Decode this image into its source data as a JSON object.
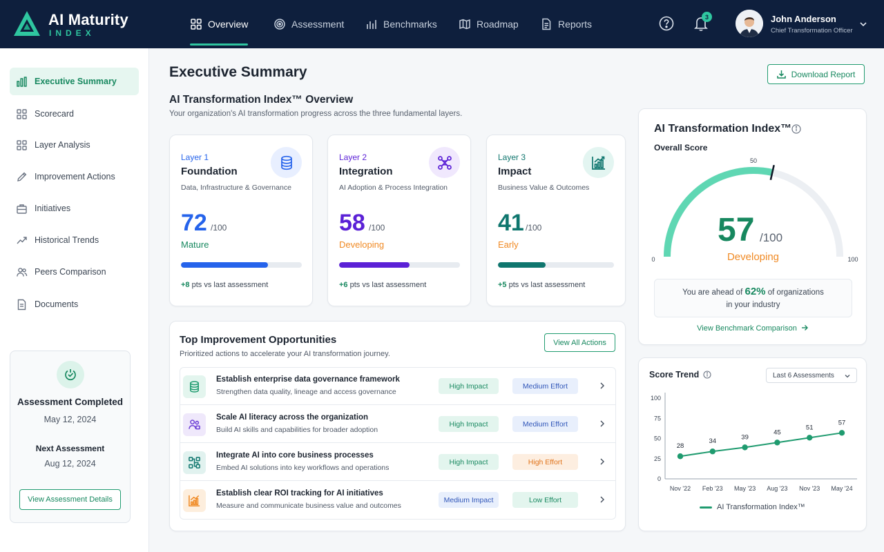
{
  "brand": {
    "title": "AI Maturity",
    "subtitle": "INDEX"
  },
  "nav": [
    {
      "label": "Overview",
      "icon": "grid-icon",
      "active": true
    },
    {
      "label": "Assessment",
      "icon": "target-icon"
    },
    {
      "label": "Benchmarks",
      "icon": "bar-chart-icon"
    },
    {
      "label": "Roadmap",
      "icon": "map-icon"
    },
    {
      "label": "Reports",
      "icon": "document-icon"
    }
  ],
  "notifications": {
    "count": "3"
  },
  "user": {
    "name": "John Anderson",
    "role": "Chief Transformation Officer"
  },
  "sidebar": {
    "items": [
      {
        "label": "Executive Summary",
        "icon": "bar-chart-icon",
        "active": true
      },
      {
        "label": "Scorecard",
        "icon": "grid-icon"
      },
      {
        "label": "Layer Analysis",
        "icon": "layers-icon"
      },
      {
        "label": "Improvement Actions",
        "icon": "pencil-icon"
      },
      {
        "label": "Initiatives",
        "icon": "briefcase-icon"
      },
      {
        "label": "Historical Trends",
        "icon": "trend-icon"
      },
      {
        "label": "Peers Comparison",
        "icon": "users-icon"
      },
      {
        "label": "Documents",
        "icon": "document-icon"
      }
    ],
    "assessment": {
      "completed_label": "Assessment Completed",
      "completed_date": "May 12, 2024",
      "next_label": "Next Assessment",
      "next_date": "Aug 12, 2024",
      "button": "View Assessment Details"
    }
  },
  "page": {
    "title": "Executive Summary",
    "download": "Download Report",
    "section_title": "AI Transformation Index™ Overview",
    "section_sub": "Your organization's AI transformation progress across the three fundamental layers."
  },
  "layers": [
    {
      "label": "Layer 1",
      "name": "Foundation",
      "desc": "Data, Infrastructure & Governance",
      "score": "72",
      "outof": "/100",
      "status": "Mature",
      "progress": 0.72,
      "delta": "+8",
      "delta_suffix": " pts vs last assessment",
      "color": "#2563eb",
      "status_color": "#17885f",
      "delta_color": "#17885f",
      "icon": "database-icon",
      "icon_bg": "#e8efff"
    },
    {
      "label": "Layer 2",
      "name": "Integration",
      "desc": "AI Adoption & Process Integration",
      "score": "58",
      "outof": "/100",
      "status": "Developing",
      "progress": 0.58,
      "delta": "+6",
      "delta_suffix": " pts vs last assessment",
      "color": "#5b21d6",
      "status_color": "#f08a24",
      "delta_color": "#17885f",
      "icon": "network-icon",
      "icon_bg": "#f0e8fd"
    },
    {
      "label": "Layer 3",
      "name": "Impact",
      "desc": "Business Value & Outcomes",
      "score": "41",
      "outof": "/100",
      "status": "Early",
      "progress": 0.41,
      "delta": "+5",
      "delta_suffix": " pts vs last assessment",
      "color": "#0f766e",
      "status_color": "#f08a24",
      "delta_color": "#17885f",
      "icon": "growth-chart-icon",
      "icon_bg": "#e3f5f1"
    }
  ],
  "opportunities": {
    "title": "Top Improvement Opportunities",
    "subtitle": "Prioritized actions to accelerate your AI transformation journey.",
    "button": "View All Actions",
    "items": [
      {
        "title": "Establish enterprise data governance framework",
        "desc": "Strengthen data quality, lineage and access governance",
        "impact": "High Impact",
        "effort": "Medium Effort",
        "icon": "database-icon",
        "impact_style": "green",
        "effort_style": "blue",
        "icon_color": "#1f9b6f",
        "icon_bg": "#e3f5ee"
      },
      {
        "title": "Scale AI literacy across the organization",
        "desc": "Build AI skills and capabilities for broader adoption",
        "impact": "High Impact",
        "effort": "Medium Effort",
        "icon": "people-icon",
        "impact_style": "green",
        "effort_style": "blue",
        "icon_color": "#6d3fd6",
        "icon_bg": "#efe8fb"
      },
      {
        "title": "Integrate AI into core business processes",
        "desc": "Embed AI solutions into key workflows and operations",
        "impact": "High Impact",
        "effort": "High Effort",
        "icon": "process-icon",
        "impact_style": "green",
        "effort_style": "orange",
        "icon_color": "#0f766e",
        "icon_bg": "#e1f2ef"
      },
      {
        "title": "Establish clear ROI tracking for AI initiatives",
        "desc": "Measure and communicate business value and outcomes",
        "impact": "Medium Impact",
        "effort": "Low Effort",
        "icon": "roi-chart-icon",
        "impact_style": "blue",
        "effort_style": "green",
        "icon_color": "#f08a24",
        "icon_bg": "#fdeedd"
      }
    ]
  },
  "index": {
    "title": "AI Transformation Index™",
    "overall_label": "Overall Score",
    "score": 57,
    "score_text": "57",
    "outof": "/100",
    "status": "Developing",
    "min_label": "0",
    "mid_label": "50",
    "max_label": "100",
    "ahead_prefix": "You are ahead of ",
    "ahead_pct": "62%",
    "ahead_suffix": " of organizations",
    "ahead_line2": "in your industry",
    "benchmark_link": "View Benchmark Comparison"
  },
  "trend": {
    "title": "Score Trend",
    "select": "Last 6 Assessments",
    "legend": "AI Transformation Index™"
  },
  "chart_data": {
    "type": "line",
    "title": "Score Trend",
    "categories": [
      "Nov '22",
      "Feb '23",
      "May '23",
      "Aug '23",
      "Nov '23",
      "May '24"
    ],
    "series": [
      {
        "name": "AI Transformation Index™",
        "values": [
          28,
          34,
          39,
          45,
          51,
          57
        ]
      }
    ],
    "yticks": [
      "100",
      "75",
      "50",
      "25",
      "0"
    ],
    "ylim": [
      0,
      100
    ],
    "grid": false,
    "legend": "bottom",
    "color": "#1f9b6f"
  }
}
